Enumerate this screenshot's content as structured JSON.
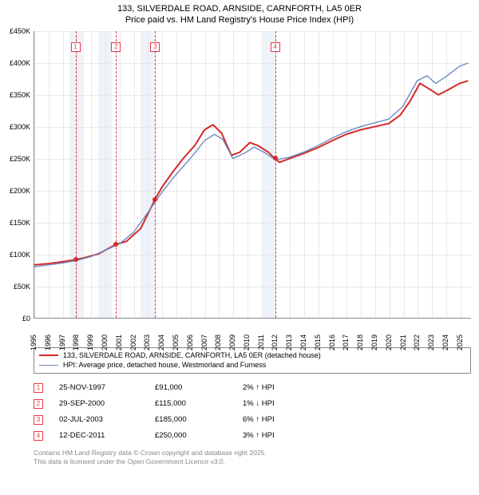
{
  "title": {
    "line1": "133, SILVERDALE ROAD, ARNSIDE, CARNFORTH, LA5 0ER",
    "line2": "Price paid vs. HM Land Registry's House Price Index (HPI)"
  },
  "chart": {
    "type": "line",
    "background_color": "#ffffff",
    "grid_color": "#e8e8e8",
    "axis_color": "#888888",
    "shade_color": "#eef2f9",
    "dash_color": "#e63946",
    "label_fontsize": 9,
    "y": {
      "min": 0,
      "max": 450000,
      "step": 50000,
      "prefix": "£",
      "suffix": "K",
      "ticks": [
        "£0",
        "£50K",
        "£100K",
        "£150K",
        "£200K",
        "£250K",
        "£300K",
        "£350K",
        "£400K",
        "£450K"
      ]
    },
    "x": {
      "min": 1995,
      "max": 2025.8,
      "ticks": [
        1995,
        1996,
        1997,
        1998,
        1999,
        2000,
        2001,
        2002,
        2003,
        2004,
        2005,
        2006,
        2007,
        2008,
        2009,
        2010,
        2011,
        2012,
        2013,
        2014,
        2015,
        2016,
        2017,
        2018,
        2019,
        2020,
        2021,
        2022,
        2023,
        2024,
        2025
      ]
    },
    "shaded_ranges": [
      [
        1997.5,
        1998.5
      ],
      [
        1999.5,
        2000.5
      ],
      [
        2002.5,
        2003.5
      ],
      [
        2011.0,
        2012.0
      ]
    ],
    "sale_markers": [
      {
        "n": "1",
        "x": 1997.9,
        "y": 91000
      },
      {
        "n": "2",
        "x": 2000.75,
        "y": 115000
      },
      {
        "n": "3",
        "x": 2003.5,
        "y": 185000
      },
      {
        "n": "4",
        "x": 2011.95,
        "y": 250000
      }
    ],
    "series": [
      {
        "name": "price_paid",
        "color": "#d62828",
        "width": 2.0,
        "points": [
          [
            1995,
            83000
          ],
          [
            1996,
            85000
          ],
          [
            1997,
            88000
          ],
          [
            1997.9,
            91000
          ],
          [
            1998.5,
            94000
          ],
          [
            1999.5,
            100000
          ],
          [
            2000.75,
            115000
          ],
          [
            2001.5,
            120000
          ],
          [
            2002.5,
            140000
          ],
          [
            2003.5,
            185000
          ],
          [
            2004,
            205000
          ],
          [
            2004.8,
            230000
          ],
          [
            2005.5,
            250000
          ],
          [
            2006.3,
            270000
          ],
          [
            2007,
            295000
          ],
          [
            2007.6,
            303000
          ],
          [
            2008.2,
            290000
          ],
          [
            2008.9,
            255000
          ],
          [
            2009.5,
            260000
          ],
          [
            2010.2,
            275000
          ],
          [
            2010.8,
            270000
          ],
          [
            2011.5,
            260000
          ],
          [
            2011.95,
            250000
          ],
          [
            2012.3,
            244000
          ],
          [
            2013,
            250000
          ],
          [
            2014,
            258000
          ],
          [
            2015,
            267000
          ],
          [
            2016,
            278000
          ],
          [
            2017,
            288000
          ],
          [
            2018,
            295000
          ],
          [
            2019,
            300000
          ],
          [
            2020,
            305000
          ],
          [
            2020.8,
            318000
          ],
          [
            2021.5,
            340000
          ],
          [
            2022.2,
            368000
          ],
          [
            2022.8,
            360000
          ],
          [
            2023.5,
            350000
          ],
          [
            2024.2,
            358000
          ],
          [
            2025,
            368000
          ],
          [
            2025.6,
            372000
          ]
        ]
      },
      {
        "name": "hpi",
        "color": "#6a8bc4",
        "width": 1.4,
        "points": [
          [
            1995,
            80000
          ],
          [
            1996,
            83000
          ],
          [
            1997,
            86000
          ],
          [
            1998,
            90000
          ],
          [
            1999,
            96000
          ],
          [
            2000,
            106000
          ],
          [
            2001,
            116000
          ],
          [
            2002,
            134000
          ],
          [
            2003,
            165000
          ],
          [
            2004,
            197000
          ],
          [
            2005,
            225000
          ],
          [
            2006,
            250000
          ],
          [
            2007,
            278000
          ],
          [
            2007.7,
            288000
          ],
          [
            2008.3,
            280000
          ],
          [
            2009,
            250000
          ],
          [
            2009.8,
            258000
          ],
          [
            2010.5,
            268000
          ],
          [
            2011.2,
            260000
          ],
          [
            2012,
            248000
          ],
          [
            2013,
            252000
          ],
          [
            2014,
            260000
          ],
          [
            2015,
            270000
          ],
          [
            2016,
            282000
          ],
          [
            2017,
            292000
          ],
          [
            2018,
            300000
          ],
          [
            2019,
            306000
          ],
          [
            2020,
            312000
          ],
          [
            2021,
            332000
          ],
          [
            2022,
            372000
          ],
          [
            2022.7,
            380000
          ],
          [
            2023.3,
            368000
          ],
          [
            2024,
            378000
          ],
          [
            2025,
            395000
          ],
          [
            2025.6,
            400000
          ]
        ]
      }
    ]
  },
  "legend": {
    "items": [
      {
        "color": "#d62828",
        "width": 2,
        "label": "133, SILVERDALE ROAD, ARNSIDE, CARNFORTH, LA5 0ER (detached house)"
      },
      {
        "color": "#6a8bc4",
        "width": 1.4,
        "label": "HPI: Average price, detached house, Westmorland and Furness"
      }
    ]
  },
  "sales_table": {
    "rows": [
      {
        "n": "1",
        "date": "25-NOV-1997",
        "price": "£91,000",
        "delta": "2% ↑ HPI",
        "dir": "up"
      },
      {
        "n": "2",
        "date": "29-SEP-2000",
        "price": "£115,000",
        "delta": "1% ↓ HPI",
        "dir": "down"
      },
      {
        "n": "3",
        "date": "02-JUL-2003",
        "price": "£185,000",
        "delta": "6% ↑ HPI",
        "dir": "up"
      },
      {
        "n": "4",
        "date": "12-DEC-2011",
        "price": "£250,000",
        "delta": "3% ↑ HPI",
        "dir": "up"
      }
    ]
  },
  "footer": {
    "line1": "Contains HM Land Registry data © Crown copyright and database right 2025.",
    "line2": "This data is licensed under the Open Government Licence v3.0."
  }
}
